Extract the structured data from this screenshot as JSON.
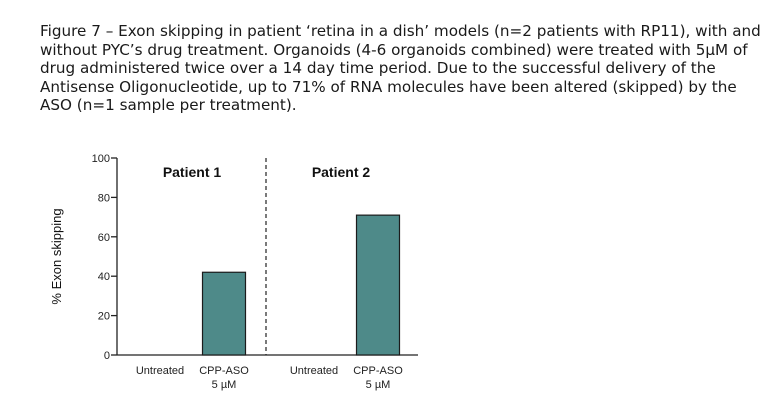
{
  "caption": "Figure 7 – Exon skipping in patient ‘retina in a dish’ models (n=2 patients with RP11), with and without PYC’s drug treatment. Organoids (4-6 organoids combined) were treated with 5µM of drug administered twice over a 14 day time period. Due to the successful delivery of the Antisense Oligonucleotide, up to 71% of RNA molecules have been altered (skipped) by the ASO (n=1 sample per treatment).",
  "chart_data": {
    "type": "bar",
    "ylabel": "% Exon skipping",
    "ylim": [
      0,
      100
    ],
    "yticks": [
      "0",
      "20",
      "40",
      "60",
      "80",
      "100"
    ],
    "bar_color": "#4e8a89",
    "panels": [
      {
        "title": "Patient 1",
        "categories": [
          {
            "line1": "Untreated",
            "line2": ""
          },
          {
            "line1": "CPP-ASO",
            "line2": "5 µM"
          }
        ],
        "values": [
          0,
          42
        ]
      },
      {
        "title": "Patient 2",
        "categories": [
          {
            "line1": "Untreated",
            "line2": ""
          },
          {
            "line1": "CPP-ASO",
            "line2": "5 µM"
          }
        ],
        "values": [
          0,
          71
        ]
      }
    ]
  }
}
